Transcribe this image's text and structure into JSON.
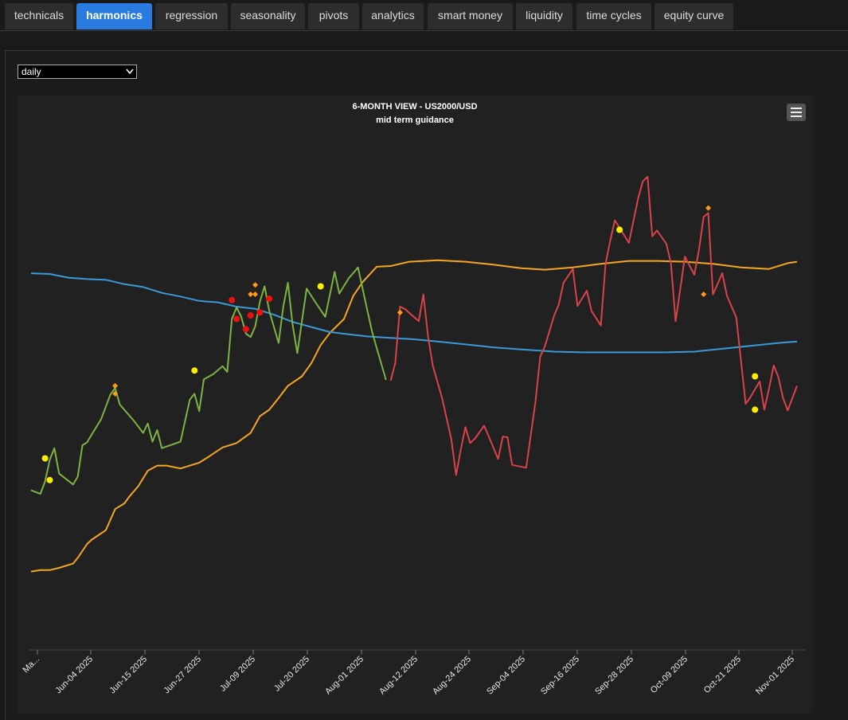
{
  "tabs": [
    {
      "label": "technicals",
      "active": false
    },
    {
      "label": "harmonics",
      "active": true
    },
    {
      "label": "regression",
      "active": false
    },
    {
      "label": "seasonality",
      "active": false
    },
    {
      "label": "pivots",
      "active": false
    },
    {
      "label": "analytics",
      "active": false
    },
    {
      "label": "smart money",
      "active": false
    },
    {
      "label": "liquidity",
      "active": false
    },
    {
      "label": "time cycles",
      "active": false
    },
    {
      "label": "equity curve",
      "active": false
    }
  ],
  "timeframe": {
    "selected": "daily"
  },
  "chart_data": {
    "type": "line",
    "title": "6-MONTH VIEW - US2000/USD",
    "subtitle": "mid term guidance",
    "x_tick_labels": [
      "Ma...",
      "Jun-04 2025",
      "Jun-15 2025",
      "Jun-27 2025",
      "Jul-09 2025",
      "Jul-20 2025",
      "Aug-01 2025",
      "Aug-12 2025",
      "Aug-24 2025",
      "Sep-04 2025",
      "Sep-16 2025",
      "Sep-28 2025",
      "Oct-09 2025",
      "Oct-21 2025",
      "Nov-01 2025"
    ],
    "x_range": [
      "2025-05-23",
      "2025-11-03"
    ],
    "y_axis_labels": "none",
    "grid": false,
    "legend": "none",
    "colors": {
      "up_line": "#7cb342",
      "down_line": "#d9434a",
      "orange_line": "#f5a623",
      "blue_line": "#3a9ad9",
      "yellow_dot": "#ffee00",
      "red_dot": "#ee1111",
      "orange_diamond": "#ff9a1a"
    },
    "series": [
      {
        "color": "#7cb342",
        "points": [
          [
            "2025-05-23",
            220
          ],
          [
            "2025-05-25",
            215
          ],
          [
            "2025-05-26",
            232
          ],
          [
            "2025-05-27",
            262
          ],
          [
            "2025-05-28",
            278
          ],
          [
            "2025-05-29",
            243
          ],
          [
            "2025-06-01",
            228
          ],
          [
            "2025-06-02",
            239
          ],
          [
            "2025-06-03",
            282
          ],
          [
            "2025-06-04",
            286
          ],
          [
            "2025-06-05",
            297
          ],
          [
            "2025-06-07",
            318
          ],
          [
            "2025-06-09",
            352
          ],
          [
            "2025-06-10",
            361
          ],
          [
            "2025-06-11",
            338
          ],
          [
            "2025-06-14",
            316
          ],
          [
            "2025-06-16",
            299
          ],
          [
            "2025-06-17",
            312
          ],
          [
            "2025-06-18",
            287
          ],
          [
            "2025-06-19",
            303
          ],
          [
            "2025-06-20",
            278
          ],
          [
            "2025-06-24",
            287
          ],
          [
            "2025-06-26",
            345
          ],
          [
            "2025-06-27",
            353
          ],
          [
            "2025-06-28",
            329
          ],
          [
            "2025-06-29",
            373
          ],
          [
            "2025-07-01",
            380
          ],
          [
            "2025-07-03",
            391
          ],
          [
            "2025-07-04",
            383
          ],
          [
            "2025-07-05",
            456
          ],
          [
            "2025-07-06",
            472
          ],
          [
            "2025-07-07",
            459
          ],
          [
            "2025-07-08",
            436
          ],
          [
            "2025-07-09",
            431
          ],
          [
            "2025-07-10",
            446
          ],
          [
            "2025-07-11",
            480
          ],
          [
            "2025-07-12",
            501
          ],
          [
            "2025-07-13",
            467
          ],
          [
            "2025-07-15",
            423
          ],
          [
            "2025-07-16",
            473
          ],
          [
            "2025-07-17",
            506
          ],
          [
            "2025-07-18",
            448
          ],
          [
            "2025-07-19",
            409
          ],
          [
            "2025-07-21",
            498
          ],
          [
            "2025-07-23",
            478
          ],
          [
            "2025-07-25",
            459
          ],
          [
            "2025-07-27",
            521
          ],
          [
            "2025-07-28",
            491
          ],
          [
            "2025-07-30",
            512
          ],
          [
            "2025-08-01",
            527
          ],
          [
            "2025-08-03",
            468
          ],
          [
            "2025-08-04",
            439
          ],
          [
            "2025-08-05",
            416
          ],
          [
            "2025-08-07",
            372
          ]
        ]
      },
      {
        "color": "#d9434a",
        "points": [
          [
            "2025-08-08",
            371
          ],
          [
            "2025-08-09",
            396
          ],
          [
            "2025-08-10",
            473
          ],
          [
            "2025-08-11",
            470
          ],
          [
            "2025-08-14",
            453
          ],
          [
            "2025-08-15",
            490
          ],
          [
            "2025-08-16",
            432
          ],
          [
            "2025-08-17",
            392
          ],
          [
            "2025-08-19",
            347
          ],
          [
            "2025-08-21",
            290
          ],
          [
            "2025-08-22",
            241
          ],
          [
            "2025-08-23",
            276
          ],
          [
            "2025-08-24",
            307
          ],
          [
            "2025-08-25",
            285
          ],
          [
            "2025-08-26",
            291
          ],
          [
            "2025-08-28",
            309
          ],
          [
            "2025-08-29",
            294
          ],
          [
            "2025-08-31",
            263
          ],
          [
            "2025-09-01",
            294
          ],
          [
            "2025-09-02",
            293
          ],
          [
            "2025-09-03",
            255
          ],
          [
            "2025-09-06",
            251
          ],
          [
            "2025-09-08",
            342
          ],
          [
            "2025-09-09",
            404
          ],
          [
            "2025-09-10",
            418
          ],
          [
            "2025-09-12",
            461
          ],
          [
            "2025-09-13",
            476
          ],
          [
            "2025-09-14",
            506
          ],
          [
            "2025-09-16",
            525
          ],
          [
            "2025-09-17",
            474
          ],
          [
            "2025-09-19",
            495
          ],
          [
            "2025-09-20",
            467
          ],
          [
            "2025-09-22",
            447
          ],
          [
            "2025-09-23",
            532
          ],
          [
            "2025-09-24",
            564
          ],
          [
            "2025-09-25",
            592
          ],
          [
            "2025-09-28",
            561
          ],
          [
            "2025-09-30",
            623
          ],
          [
            "2025-10-01",
            646
          ],
          [
            "2025-10-02",
            652
          ],
          [
            "2025-10-03",
            570
          ],
          [
            "2025-10-04",
            578
          ],
          [
            "2025-10-06",
            560
          ],
          [
            "2025-10-07",
            533
          ],
          [
            "2025-10-08",
            453
          ],
          [
            "2025-10-10",
            542
          ],
          [
            "2025-10-12",
            517
          ],
          [
            "2025-10-13",
            551
          ],
          [
            "2025-10-14",
            597
          ],
          [
            "2025-10-15",
            602
          ],
          [
            "2025-10-16",
            490
          ],
          [
            "2025-10-18",
            519
          ],
          [
            "2025-10-19",
            488
          ],
          [
            "2025-10-21",
            458
          ],
          [
            "2025-10-23",
            339
          ],
          [
            "2025-10-24",
            348
          ],
          [
            "2025-10-26",
            370
          ],
          [
            "2025-10-27",
            331
          ],
          [
            "2025-10-28",
            360
          ],
          [
            "2025-10-29",
            392
          ],
          [
            "2025-10-30",
            376
          ],
          [
            "2025-10-31",
            347
          ],
          [
            "2025-11-01",
            330
          ],
          [
            "2025-11-03",
            364
          ]
        ]
      },
      {
        "color": "#f5a623",
        "points": [
          [
            "2025-05-23",
            108
          ],
          [
            "2025-05-25",
            110
          ],
          [
            "2025-05-27",
            110
          ],
          [
            "2025-05-29",
            113
          ],
          [
            "2025-06-01",
            119
          ],
          [
            "2025-06-02",
            127
          ],
          [
            "2025-06-04",
            146
          ],
          [
            "2025-06-05",
            152
          ],
          [
            "2025-06-08",
            165
          ],
          [
            "2025-06-10",
            194
          ],
          [
            "2025-06-12",
            202
          ],
          [
            "2025-06-13",
            211
          ],
          [
            "2025-06-15",
            226
          ],
          [
            "2025-06-17",
            247
          ],
          [
            "2025-06-19",
            254
          ],
          [
            "2025-06-21",
            254
          ],
          [
            "2025-06-24",
            250
          ],
          [
            "2025-06-28",
            258
          ],
          [
            "2025-06-30",
            266
          ],
          [
            "2025-07-03",
            279
          ],
          [
            "2025-07-06",
            285
          ],
          [
            "2025-07-09",
            299
          ],
          [
            "2025-07-11",
            322
          ],
          [
            "2025-07-13",
            331
          ],
          [
            "2025-07-15",
            347
          ],
          [
            "2025-07-17",
            364
          ],
          [
            "2025-07-20",
            377
          ],
          [
            "2025-07-22",
            395
          ],
          [
            "2025-07-24",
            420
          ],
          [
            "2025-07-26",
            437
          ],
          [
            "2025-07-29",
            456
          ],
          [
            "2025-07-31",
            488
          ],
          [
            "2025-08-02",
            507
          ],
          [
            "2025-08-05",
            528
          ],
          [
            "2025-08-08",
            529
          ],
          [
            "2025-08-12",
            535
          ],
          [
            "2025-08-18",
            537
          ],
          [
            "2025-08-24",
            535
          ],
          [
            "2025-08-30",
            531
          ],
          [
            "2025-09-05",
            526
          ],
          [
            "2025-09-10",
            524
          ],
          [
            "2025-09-16",
            527
          ],
          [
            "2025-09-22",
            532
          ],
          [
            "2025-09-28",
            536
          ],
          [
            "2025-10-04",
            536
          ],
          [
            "2025-10-10",
            535
          ],
          [
            "2025-10-16",
            532
          ],
          [
            "2025-10-22",
            527
          ],
          [
            "2025-10-28",
            525
          ],
          [
            "2025-11-01",
            533
          ],
          [
            "2025-11-03",
            535
          ]
        ]
      },
      {
        "color": "#3a9ad9",
        "points": [
          [
            "2025-05-23",
            519
          ],
          [
            "2025-05-27",
            518
          ],
          [
            "2025-05-31",
            513
          ],
          [
            "2025-06-04",
            511
          ],
          [
            "2025-06-08",
            510
          ],
          [
            "2025-06-12",
            504
          ],
          [
            "2025-06-16",
            500
          ],
          [
            "2025-06-20",
            492
          ],
          [
            "2025-06-24",
            487
          ],
          [
            "2025-06-28",
            481
          ],
          [
            "2025-07-02",
            479
          ],
          [
            "2025-07-06",
            473
          ],
          [
            "2025-07-10",
            470
          ],
          [
            "2025-07-14",
            462
          ],
          [
            "2025-07-18",
            452
          ],
          [
            "2025-07-22",
            445
          ],
          [
            "2025-07-26",
            438
          ],
          [
            "2025-07-30",
            435
          ],
          [
            "2025-08-03",
            432
          ],
          [
            "2025-08-08",
            430
          ],
          [
            "2025-08-13",
            428
          ],
          [
            "2025-08-18",
            425
          ],
          [
            "2025-08-24",
            421
          ],
          [
            "2025-08-30",
            417
          ],
          [
            "2025-09-05",
            414
          ],
          [
            "2025-09-12",
            411
          ],
          [
            "2025-09-18",
            410
          ],
          [
            "2025-09-24",
            410
          ],
          [
            "2025-09-30",
            410
          ],
          [
            "2025-10-06",
            410
          ],
          [
            "2025-10-12",
            411
          ],
          [
            "2025-10-18",
            415
          ],
          [
            "2025-10-24",
            419
          ],
          [
            "2025-10-30",
            423
          ],
          [
            "2025-11-03",
            425
          ]
        ]
      }
    ],
    "markers": [
      {
        "shape": "dot",
        "color": "#ffee00",
        "x": "2025-05-26",
        "y": 264
      },
      {
        "shape": "dot",
        "color": "#ffee00",
        "x": "2025-05-27",
        "y": 234
      },
      {
        "shape": "dot",
        "color": "#ffee00",
        "x": "2025-06-27",
        "y": 385
      },
      {
        "shape": "dot",
        "color": "#ffee00",
        "x": "2025-07-24",
        "y": 501
      },
      {
        "shape": "dot",
        "color": "#ffee00",
        "x": "2025-09-26",
        "y": 579
      },
      {
        "shape": "dot",
        "color": "#ffee00",
        "x": "2025-10-25",
        "y": 377
      },
      {
        "shape": "dot",
        "color": "#ffee00",
        "x": "2025-10-25",
        "y": 331
      },
      {
        "shape": "dot",
        "color": "#ee1111",
        "x": "2025-07-05",
        "y": 482
      },
      {
        "shape": "dot",
        "color": "#ee1111",
        "x": "2025-07-06",
        "y": 456
      },
      {
        "shape": "dot",
        "color": "#ee1111",
        "x": "2025-07-08",
        "y": 442
      },
      {
        "shape": "dot",
        "color": "#ee1111",
        "x": "2025-07-09",
        "y": 461
      },
      {
        "shape": "dot",
        "color": "#ee1111",
        "x": "2025-07-11",
        "y": 465
      },
      {
        "shape": "dot",
        "color": "#ee1111",
        "x": "2025-07-13",
        "y": 484
      },
      {
        "shape": "diamond",
        "color": "#ff9a1a",
        "x": "2025-06-10",
        "y": 364
      },
      {
        "shape": "diamond",
        "color": "#ff9a1a",
        "x": "2025-06-10",
        "y": 353
      },
      {
        "shape": "diamond",
        "color": "#ff9a1a",
        "x": "2025-07-09",
        "y": 490
      },
      {
        "shape": "diamond",
        "color": "#ff9a1a",
        "x": "2025-07-10",
        "y": 503
      },
      {
        "shape": "diamond",
        "color": "#ff9a1a",
        "x": "2025-07-10",
        "y": 490
      },
      {
        "shape": "diamond",
        "color": "#ff9a1a",
        "x": "2025-08-10",
        "y": 465
      },
      {
        "shape": "diamond",
        "color": "#ff9a1a",
        "x": "2025-10-14",
        "y": 490
      },
      {
        "shape": "diamond",
        "color": "#ff9a1a",
        "x": "2025-10-15",
        "y": 609
      }
    ]
  }
}
